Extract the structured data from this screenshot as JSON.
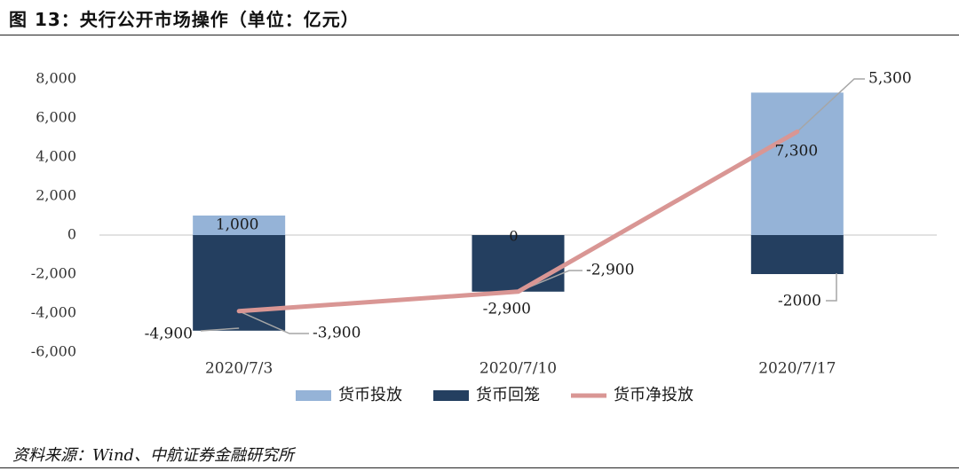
{
  "figure": {
    "title": "图 13：央行公开市场操作（单位：亿元）",
    "source": "资料来源：Wind、中航证券金融研究所"
  },
  "chart_data": {
    "type": "bar",
    "categories": [
      "2020/7/3",
      "2020/7/10",
      "2020/7/17"
    ],
    "series": [
      {
        "name": "货币投放",
        "kind": "bar",
        "color": "#95b3d7",
        "values": [
          1000,
          0,
          7300
        ]
      },
      {
        "name": "货币回笼",
        "kind": "bar",
        "color": "#243f60",
        "values": [
          -4900,
          -2900,
          -2000
        ]
      },
      {
        "name": "货币净投放",
        "kind": "line",
        "color": "#d99694",
        "values": [
          -3900,
          -2900,
          5300
        ]
      }
    ],
    "ylim": [
      -6000,
      8000
    ],
    "yticks": [
      8000,
      6000,
      4000,
      2000,
      0,
      -2000,
      -4000,
      -6000
    ],
    "ytick_labels": [
      "8,000",
      "6,000",
      "4,000",
      "2,000",
      "0",
      "-2,000",
      "-4,000",
      "-6,000"
    ],
    "data_labels": {
      "inject": [
        "1,000",
        "0",
        "7,300"
      ],
      "withdraw": [
        "-4,900",
        "-2,900",
        "-2000"
      ],
      "net": [
        "-3,900",
        "-2,900",
        "5,300"
      ]
    },
    "grid": false,
    "legend_position": "bottom",
    "xlabel": "",
    "ylabel": ""
  }
}
